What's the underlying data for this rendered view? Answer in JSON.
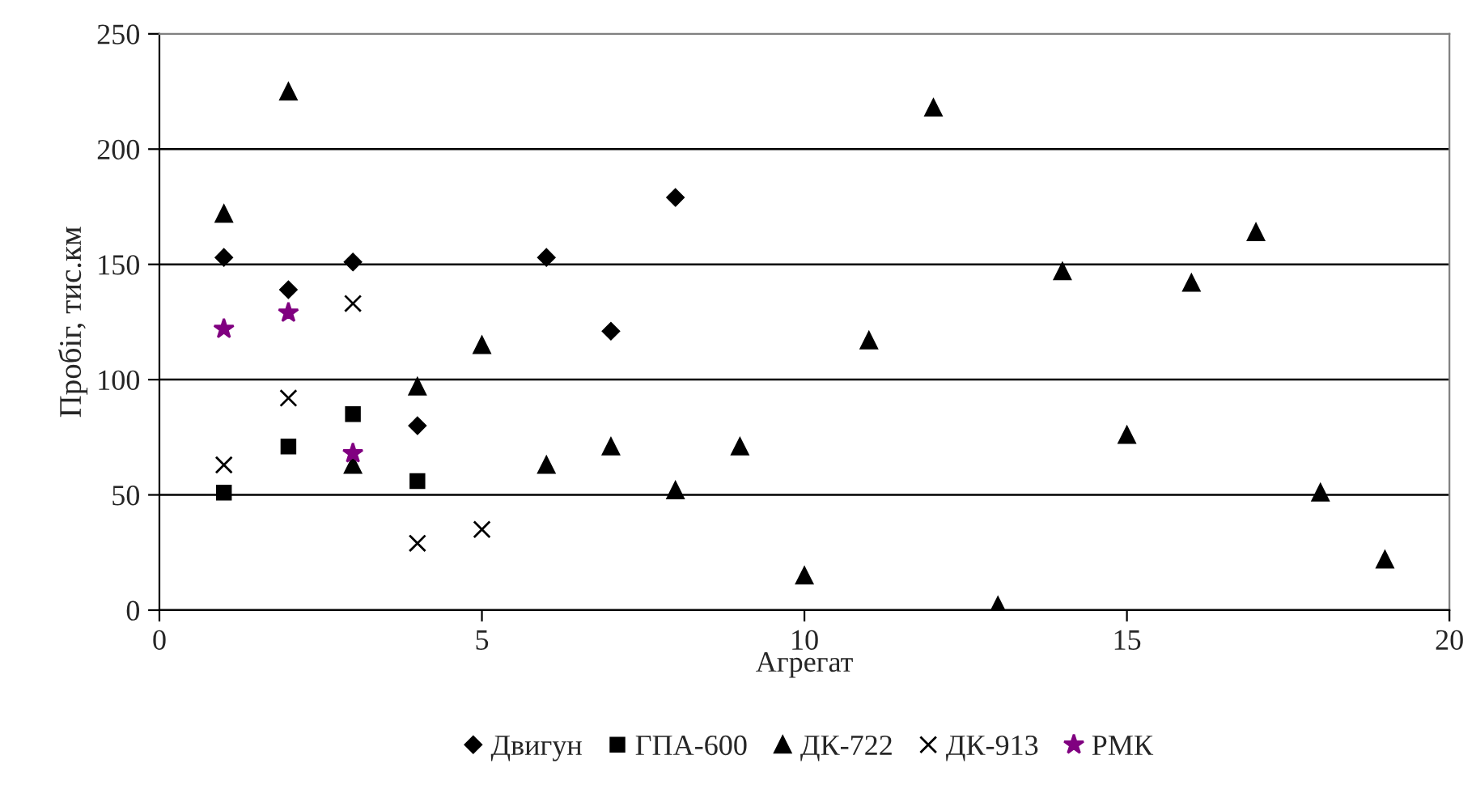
{
  "chart_data": {
    "type": "scatter",
    "xlabel": "Агрегат",
    "ylabel": "Пробіг, тис.км",
    "xlim": [
      0,
      20
    ],
    "xticks": [
      0,
      5,
      10,
      15,
      20
    ],
    "ylim": [
      0,
      250
    ],
    "yticks": [
      0,
      50,
      100,
      150,
      200,
      250
    ],
    "grid": "y",
    "legend": "bottom",
    "series": [
      {
        "name": "Двигун",
        "color": "#000000",
        "marker": "diamond",
        "x": [
          1,
          2,
          3,
          4,
          6,
          7,
          8
        ],
        "values": [
          153,
          139,
          151,
          80,
          153,
          121,
          179
        ]
      },
      {
        "name": "ГПА-600",
        "color": "#000000",
        "marker": "square",
        "x": [
          1,
          2,
          3,
          4
        ],
        "values": [
          51,
          71,
          85,
          56
        ]
      },
      {
        "name": "ДК-722",
        "color": "#000000",
        "marker": "triangle",
        "x": [
          1,
          2,
          3,
          4,
          5,
          6,
          7,
          8,
          9,
          10,
          11,
          12,
          13,
          14,
          15,
          16,
          17,
          18,
          19
        ],
        "values": [
          172,
          225,
          63,
          97,
          115,
          63,
          71,
          52,
          71,
          15,
          117,
          218,
          2,
          147,
          76,
          142,
          164,
          51,
          22
        ]
      },
      {
        "name": "ДК-913",
        "color": "#000000",
        "marker": "cross",
        "x": [
          1,
          2,
          3,
          4,
          5
        ],
        "values": [
          63,
          92,
          133,
          29,
          35
        ]
      },
      {
        "name": "РМК",
        "color": "#800080",
        "marker": "star",
        "x": [
          1,
          2,
          3
        ],
        "values": [
          122,
          129,
          68
        ]
      }
    ]
  }
}
